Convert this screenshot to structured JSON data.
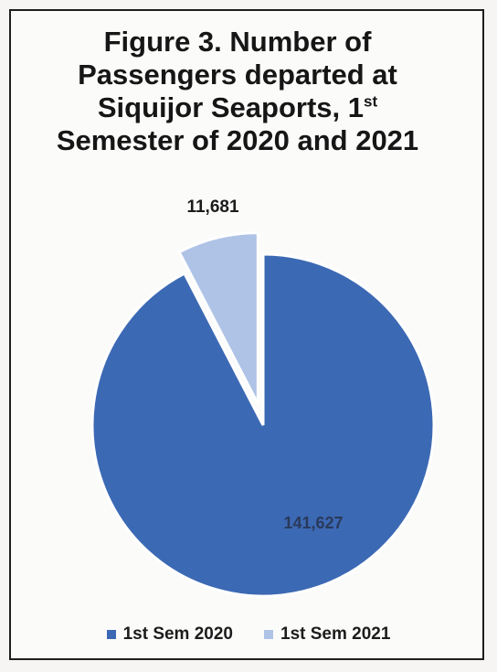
{
  "figure": {
    "title_main": "Figure 3. Number of Passengers departed at Siquijor Seaports, 1",
    "title_sup": "st",
    "title_end": "Semester of 2020 and 2021"
  },
  "chart_data": {
    "type": "pie",
    "title": "Figure 3. Number of Passengers departed at Siquijor Seaports, 1st Semester of 2020 and 2021",
    "categories": [
      "1st Sem 2020",
      "1st Sem 2021"
    ],
    "values": [
      141627,
      11681
    ],
    "data_labels": [
      "141,627",
      "11,681"
    ],
    "colors": [
      "#3c69b4",
      "#aec3e6"
    ],
    "exploded": [
      "1st Sem 2021"
    ],
    "legend_position": "bottom"
  }
}
